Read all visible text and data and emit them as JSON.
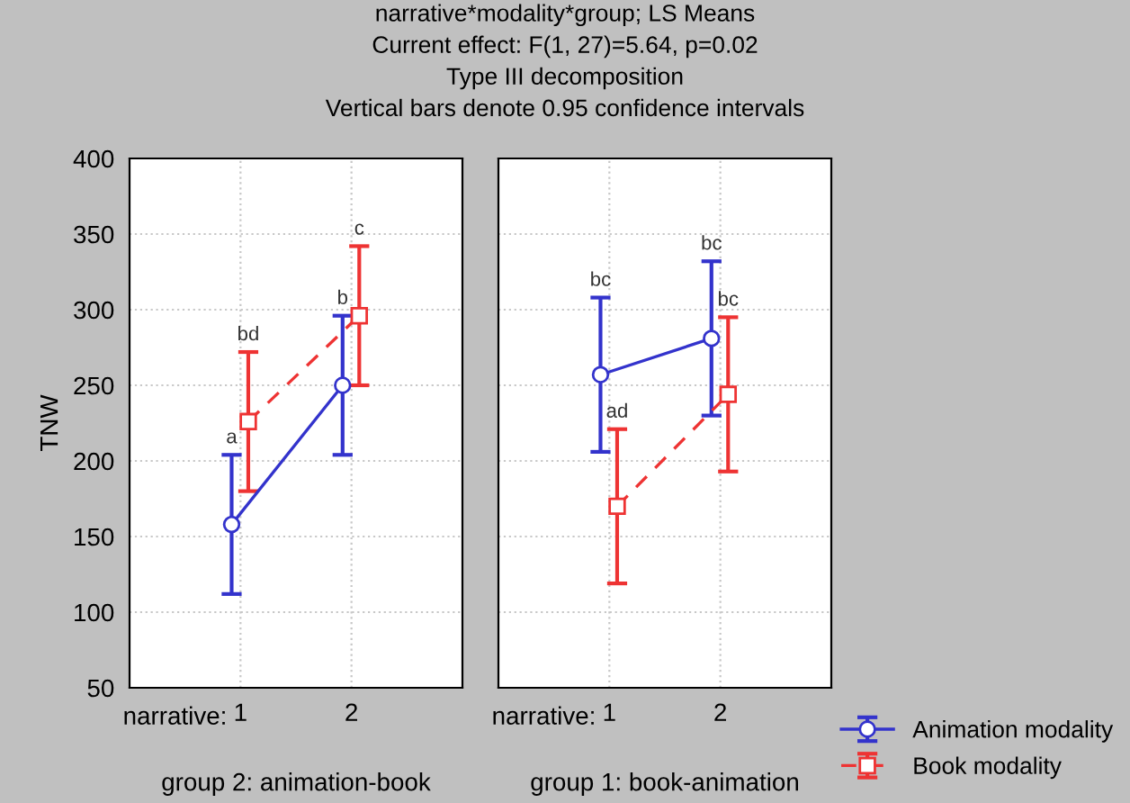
{
  "chart_data": [
    {
      "type": "line",
      "title": "narrative*modality*group; LS Means\nCurrent effect: F(1, 27)=5.64, p=0.02\nType III decomposition\nVertical bars denote 0.95 confidence intervals",
      "subtitle": "group 2: animation-book",
      "xlabel": "narrative:",
      "ylabel": "TNW",
      "xlim": [
        0,
        3
      ],
      "xticks": [
        1,
        2
      ],
      "ylim": [
        50,
        400
      ],
      "yticks": [
        50,
        100,
        150,
        200,
        250,
        300,
        350,
        400
      ],
      "grid": true,
      "series": [
        {
          "color": "#3333cc",
          "marker": "circle",
          "line_style": "solid",
          "x": [
            0.92,
            1.92
          ],
          "values": [
            158,
            250
          ],
          "errors": [
            46,
            46
          ]
        },
        {
          "color": "#ee3333",
          "marker": "square",
          "line_style": "dashed",
          "x": [
            1.07,
            2.07
          ],
          "values": [
            226,
            296
          ],
          "errors": [
            46,
            46
          ]
        }
      ],
      "annotations": [
        {
          "text": "a",
          "x": 0.92,
          "y": 204
        },
        {
          "text": "bd",
          "x": 1.07,
          "y": 272
        },
        {
          "text": "b",
          "x": 1.92,
          "y": 296
        },
        {
          "text": "c",
          "x": 2.07,
          "y": 342
        }
      ]
    },
    {
      "type": "line",
      "subtitle": "group 1: book-animation",
      "xlabel": "narrative:",
      "tick_labels": "x",
      "xlim": [
        0,
        3
      ],
      "xticks": [
        1,
        2
      ],
      "ylim": [
        50,
        400
      ],
      "yticks": [
        50,
        100,
        150,
        200,
        250,
        300,
        350,
        400
      ],
      "grid": true,
      "legend": "bottom right",
      "series": [
        {
          "name": "Animation modality",
          "color": "#3333cc",
          "marker": "circle",
          "line_style": "solid",
          "x": [
            0.92,
            1.92
          ],
          "values": [
            257,
            281
          ],
          "errors": [
            51,
            51
          ]
        },
        {
          "name": "Book modality",
          "color": "#ee3333",
          "marker": "square",
          "line_style": "dashed",
          "x": [
            1.07,
            2.07
          ],
          "values": [
            170,
            244
          ],
          "errors": [
            51,
            51
          ]
        }
      ],
      "annotations": [
        {
          "text": "bc",
          "x": 0.92,
          "y": 308
        },
        {
          "text": "ad",
          "x": 1.07,
          "y": 221
        },
        {
          "text": "bc",
          "x": 1.92,
          "y": 332
        },
        {
          "text": "bc",
          "x": 2.07,
          "y": 295
        }
      ]
    }
  ]
}
